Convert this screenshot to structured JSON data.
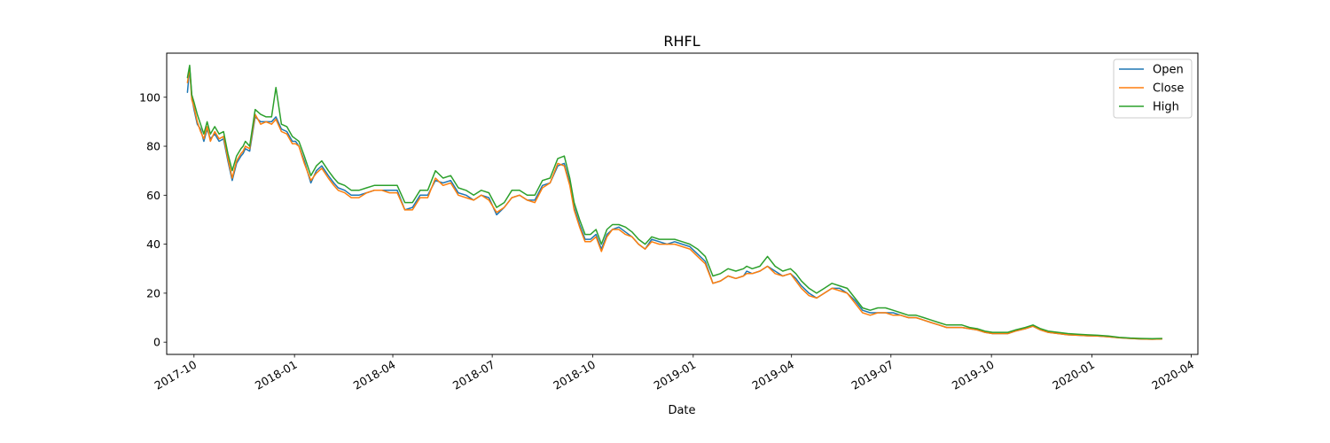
{
  "chart_data": {
    "type": "line",
    "title": "RHFL",
    "xlabel": "Date",
    "ylabel": "",
    "x_range": [
      "2017-09-06",
      "2020-04-07"
    ],
    "ylim": [
      -5,
      118
    ],
    "grid": false,
    "legend_position": "top-right",
    "x_ticks": [
      "2017-10",
      "2018-01",
      "2018-04",
      "2018-07",
      "2018-10",
      "2019-01",
      "2019-04",
      "2019-07",
      "2019-10",
      "2020-01",
      "2020-04"
    ],
    "y_ticks": [
      0,
      20,
      40,
      60,
      80,
      100
    ],
    "x": [
      "2017-09-25",
      "2017-09-27",
      "2017-09-29",
      "2017-10-01",
      "2017-10-04",
      "2017-10-07",
      "2017-10-10",
      "2017-10-13",
      "2017-10-16",
      "2017-10-20",
      "2017-10-24",
      "2017-10-28",
      "2017-11-01",
      "2017-11-05",
      "2017-11-09",
      "2017-11-13",
      "2017-11-15",
      "2017-11-17",
      "2017-11-21",
      "2017-11-26",
      "2017-12-01",
      "2017-12-06",
      "2017-12-11",
      "2017-12-15",
      "2017-12-20",
      "2017-12-25",
      "2017-12-30",
      "2018-01-02",
      "2018-01-05",
      "2018-01-10",
      "2018-01-16",
      "2018-01-21",
      "2018-01-26",
      "2018-02-01",
      "2018-02-06",
      "2018-02-10",
      "2018-02-16",
      "2018-02-22",
      "2018-03-01",
      "2018-03-08",
      "2018-03-15",
      "2018-03-22",
      "2018-03-29",
      "2018-04-05",
      "2018-04-12",
      "2018-04-19",
      "2018-04-26",
      "2018-05-03",
      "2018-05-10",
      "2018-05-17",
      "2018-05-24",
      "2018-05-31",
      "2018-06-07",
      "2018-06-14",
      "2018-06-21",
      "2018-06-28",
      "2018-07-05",
      "2018-07-12",
      "2018-07-19",
      "2018-07-26",
      "2018-08-02",
      "2018-08-09",
      "2018-08-16",
      "2018-08-23",
      "2018-08-30",
      "2018-09-05",
      "2018-09-10",
      "2018-09-14",
      "2018-09-19",
      "2018-09-24",
      "2018-09-29",
      "2018-10-04",
      "2018-10-09",
      "2018-10-14",
      "2018-10-19",
      "2018-10-25",
      "2018-10-31",
      "2018-11-06",
      "2018-11-12",
      "2018-11-18",
      "2018-11-24",
      "2018-12-01",
      "2018-12-08",
      "2018-12-15",
      "2018-12-22",
      "2018-12-29",
      "2019-01-05",
      "2019-01-12",
      "2019-01-19",
      "2019-01-26",
      "2019-02-02",
      "2019-02-09",
      "2019-02-16",
      "2019-02-19",
      "2019-02-24",
      "2019-03-03",
      "2019-03-10",
      "2019-03-17",
      "2019-03-24",
      "2019-03-31",
      "2019-04-05",
      "2019-04-10",
      "2019-04-17",
      "2019-04-24",
      "2019-05-01",
      "2019-05-08",
      "2019-05-15",
      "2019-05-22",
      "2019-05-29",
      "2019-06-05",
      "2019-06-12",
      "2019-06-19",
      "2019-06-26",
      "2019-07-03",
      "2019-07-10",
      "2019-07-17",
      "2019-07-24",
      "2019-07-31",
      "2019-08-07",
      "2019-08-14",
      "2019-08-21",
      "2019-08-28",
      "2019-09-04",
      "2019-09-11",
      "2019-09-18",
      "2019-09-25",
      "2019-10-02",
      "2019-10-09",
      "2019-10-16",
      "2019-10-23",
      "2019-11-01",
      "2019-11-08",
      "2019-11-15",
      "2019-11-22",
      "2019-12-01",
      "2019-12-10",
      "2019-12-19",
      "2019-12-28",
      "2020-01-06",
      "2020-01-16",
      "2020-01-26",
      "2020-02-05",
      "2020-02-15",
      "2020-02-25",
      "2020-03-05"
    ],
    "series": [
      {
        "name": "Open",
        "color": "#1f77b4",
        "values": [
          102,
          112,
          100,
          95,
          89,
          87,
          82,
          87,
          83,
          85,
          82,
          83,
          74,
          66,
          73,
          76,
          77,
          79,
          78,
          92,
          90,
          90,
          90,
          92,
          87,
          86,
          82,
          82,
          80,
          74,
          65,
          70,
          72,
          68,
          65,
          63,
          62,
          60,
          60,
          61,
          62,
          62,
          62,
          62,
          54,
          55,
          60,
          60,
          66,
          65,
          66,
          61,
          60,
          58,
          60,
          59,
          52,
          55,
          59,
          60,
          58,
          58,
          64,
          65,
          72,
          73,
          65,
          55,
          48,
          42,
          42,
          44,
          38,
          44,
          46,
          47,
          45,
          43,
          40,
          38,
          42,
          41,
          40,
          41,
          40,
          39,
          36,
          33,
          24,
          25,
          27,
          26,
          27,
          29,
          28,
          29,
          31,
          29,
          27,
          28,
          26,
          23,
          20,
          18,
          20,
          22,
          22,
          20,
          17,
          13,
          12,
          12,
          12,
          12,
          11,
          10,
          10,
          9,
          8,
          7,
          6,
          6,
          6,
          5.5,
          5,
          4,
          3.5,
          3.5,
          3.5,
          4.5,
          5.5,
          6.5,
          5,
          4,
          3.5,
          3,
          2.8,
          2.6,
          2.5,
          2.2,
          1.8,
          1.5,
          1.3,
          1.2,
          1.3
        ]
      },
      {
        "name": "Close",
        "color": "#ff7f0e",
        "values": [
          106,
          112,
          99,
          96,
          90,
          86,
          83,
          88,
          82,
          86,
          83,
          84,
          75,
          67,
          74,
          77,
          78,
          80,
          79,
          93,
          89,
          90,
          89,
          91,
          86,
          85,
          81,
          81,
          80,
          73,
          66,
          69,
          71,
          67,
          64,
          62,
          61,
          59,
          59,
          61,
          62,
          62,
          61,
          61,
          54,
          54,
          59,
          59,
          67,
          64,
          65,
          60,
          59,
          58,
          60,
          58,
          53,
          55,
          59,
          60,
          58,
          57,
          63,
          65,
          73,
          72,
          64,
          54,
          47,
          41,
          41,
          43,
          37,
          43,
          46,
          46,
          44,
          43,
          40,
          38,
          41,
          40,
          40,
          40,
          39,
          38,
          35,
          32,
          24,
          25,
          27,
          26,
          27,
          28,
          28,
          29,
          31,
          28,
          27,
          28,
          25,
          22,
          19,
          18,
          20,
          22,
          21,
          20,
          16,
          12,
          11,
          12,
          12,
          11,
          11,
          10,
          10,
          9,
          8,
          7,
          6,
          6,
          6,
          5.5,
          5,
          4,
          3.5,
          3.5,
          3.5,
          4.5,
          5.5,
          6.5,
          5,
          4,
          3.5,
          3,
          2.8,
          2.6,
          2.5,
          2.2,
          1.8,
          1.5,
          1.3,
          1.2,
          1.3
        ]
      },
      {
        "name": "High",
        "color": "#2ca02c",
        "values": [
          108,
          113,
          101,
          98,
          93,
          89,
          85,
          90,
          85,
          88,
          85,
          86,
          77,
          70,
          76,
          79,
          80,
          82,
          80,
          95,
          93,
          92,
          92,
          104,
          89,
          88,
          84,
          83,
          82,
          76,
          68,
          72,
          74,
          70,
          67,
          65,
          64,
          62,
          62,
          63,
          64,
          64,
          64,
          64,
          57,
          57,
          62,
          62,
          70,
          67,
          68,
          63,
          62,
          60,
          62,
          61,
          55,
          57,
          62,
          62,
          60,
          60,
          66,
          67,
          75,
          76,
          67,
          57,
          50,
          44,
          44,
          46,
          40,
          46,
          48,
          48,
          47,
          45,
          42,
          40,
          43,
          42,
          42,
          42,
          41,
          40,
          38,
          35,
          27,
          28,
          30,
          29,
          30,
          31,
          30,
          31,
          35,
          31,
          29,
          30,
          28,
          25,
          22,
          20,
          22,
          24,
          23,
          22,
          18,
          14,
          13,
          14,
          14,
          13,
          12,
          11,
          11,
          10,
          9,
          8,
          7,
          7,
          7,
          6,
          5.5,
          4.5,
          4,
          4,
          4,
          5,
          6,
          7,
          5.5,
          4.5,
          4,
          3.5,
          3.2,
          3,
          2.8,
          2.5,
          2,
          1.7,
          1.5,
          1.4,
          1.5
        ]
      }
    ]
  }
}
